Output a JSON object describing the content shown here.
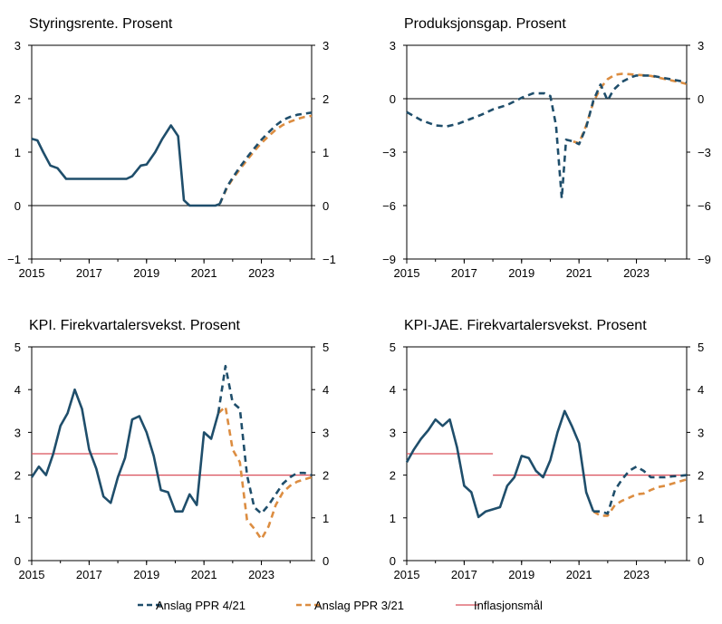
{
  "colors": {
    "ppr421": "#1f4e6b",
    "ppr321": "#dc8d41",
    "target": "#d9505b",
    "axis": "#000000"
  },
  "legend": [
    {
      "label": "Anslag PPR 4/21",
      "style": "dash-navy"
    },
    {
      "label": "Anslag PPR 3/21",
      "style": "dash-orange"
    },
    {
      "label": "Inflasjonsmål",
      "style": "solid-red"
    }
  ],
  "chart_data": [
    {
      "type": "line",
      "title": "Styringsrente. Prosent",
      "xlim": [
        2015,
        2024.75
      ],
      "ylim": [
        -1,
        3
      ],
      "yticks": [
        "-1",
        "0",
        "1",
        "2",
        "3"
      ],
      "yticks_right": [
        "-1",
        "0",
        "1",
        "2",
        "3"
      ],
      "ytick_values": [
        -1,
        0,
        1,
        2,
        3
      ],
      "xticks": [
        "2015",
        "2017",
        "2019",
        "2021",
        "2023"
      ],
      "series": [
        {
          "role": "history",
          "points": [
            [
              2015.0,
              1.25
            ],
            [
              2015.2,
              1.22
            ],
            [
              2015.4,
              1.0
            ],
            [
              2015.65,
              0.75
            ],
            [
              2015.9,
              0.7
            ],
            [
              2016.2,
              0.5
            ],
            [
              2016.5,
              0.5
            ],
            [
              2016.8,
              0.5
            ],
            [
              2017.2,
              0.5
            ],
            [
              2017.6,
              0.5
            ],
            [
              2018.0,
              0.5
            ],
            [
              2018.3,
              0.5
            ],
            [
              2018.5,
              0.55
            ],
            [
              2018.8,
              0.75
            ],
            [
              2019.0,
              0.77
            ],
            [
              2019.3,
              1.0
            ],
            [
              2019.55,
              1.25
            ],
            [
              2019.85,
              1.5
            ],
            [
              2020.1,
              1.3
            ],
            [
              2020.3,
              0.1
            ],
            [
              2020.5,
              0.0
            ],
            [
              2020.8,
              0.0
            ],
            [
              2021.1,
              0.0
            ],
            [
              2021.4,
              0.0
            ],
            [
              2021.55,
              0.03
            ]
          ]
        },
        {
          "role": "ppr421",
          "points": [
            [
              2021.55,
              0.03
            ],
            [
              2021.8,
              0.35
            ],
            [
              2022.0,
              0.52
            ],
            [
              2022.25,
              0.72
            ],
            [
              2022.5,
              0.9
            ],
            [
              2022.75,
              1.07
            ],
            [
              2023.0,
              1.23
            ],
            [
              2023.25,
              1.37
            ],
            [
              2023.5,
              1.5
            ],
            [
              2023.75,
              1.6
            ],
            [
              2024.0,
              1.66
            ],
            [
              2024.25,
              1.7
            ],
            [
              2024.5,
              1.72
            ],
            [
              2024.75,
              1.74
            ]
          ]
        },
        {
          "role": "ppr321",
          "points": [
            [
              2021.55,
              0.03
            ],
            [
              2021.8,
              0.33
            ],
            [
              2022.0,
              0.5
            ],
            [
              2022.25,
              0.68
            ],
            [
              2022.5,
              0.85
            ],
            [
              2022.75,
              1.02
            ],
            [
              2023.0,
              1.17
            ],
            [
              2023.25,
              1.3
            ],
            [
              2023.5,
              1.42
            ],
            [
              2023.75,
              1.51
            ],
            [
              2024.0,
              1.57
            ],
            [
              2024.25,
              1.62
            ],
            [
              2024.5,
              1.66
            ],
            [
              2024.75,
              1.68
            ]
          ]
        }
      ]
    },
    {
      "type": "line",
      "title": "Produksjonsgap. Prosent",
      "xlim": [
        2015,
        2024.75
      ],
      "ylim": [
        -9,
        3
      ],
      "yticks": [
        "-9",
        "-6",
        "-3",
        "0",
        "3"
      ],
      "yticks_right": [
        "-9",
        "-6",
        "-3",
        "0",
        "3"
      ],
      "ytick_values": [
        -9,
        -6,
        -3,
        0,
        3
      ],
      "xticks": [
        "2015",
        "2017",
        "2019",
        "2021",
        "2023"
      ],
      "series": [
        {
          "role": "ppr421",
          "points": [
            [
              2015.0,
              -0.75
            ],
            [
              2015.5,
              -1.2
            ],
            [
              2016.0,
              -1.5
            ],
            [
              2016.4,
              -1.55
            ],
            [
              2016.8,
              -1.4
            ],
            [
              2017.2,
              -1.15
            ],
            [
              2017.6,
              -0.9
            ],
            [
              2018.0,
              -0.6
            ],
            [
              2018.5,
              -0.35
            ],
            [
              2019.0,
              0.05
            ],
            [
              2019.4,
              0.3
            ],
            [
              2019.8,
              0.3
            ],
            [
              2020.0,
              0.15
            ],
            [
              2020.2,
              -1.5
            ],
            [
              2020.4,
              -5.6
            ],
            [
              2020.55,
              -2.3
            ],
            [
              2020.8,
              -2.4
            ],
            [
              2021.0,
              -2.55
            ],
            [
              2021.25,
              -1.6
            ],
            [
              2021.5,
              -0.1
            ],
            [
              2021.75,
              0.8
            ],
            [
              2022.0,
              -0.1
            ],
            [
              2022.2,
              0.5
            ],
            [
              2022.5,
              0.95
            ],
            [
              2022.8,
              1.2
            ],
            [
              2023.0,
              1.3
            ],
            [
              2023.5,
              1.3
            ],
            [
              2024.0,
              1.15
            ],
            [
              2024.5,
              1.0
            ],
            [
              2024.75,
              0.9
            ]
          ]
        },
        {
          "role": "ppr321",
          "points": [
            [
              2020.8,
              -2.4
            ],
            [
              2021.0,
              -2.5
            ],
            [
              2021.25,
              -1.5
            ],
            [
              2021.5,
              -0.2
            ],
            [
              2021.75,
              0.6
            ],
            [
              2022.0,
              1.1
            ],
            [
              2022.25,
              1.35
            ],
            [
              2022.5,
              1.4
            ],
            [
              2022.75,
              1.38
            ],
            [
              2023.0,
              1.35
            ],
            [
              2023.5,
              1.28
            ],
            [
              2024.0,
              1.1
            ],
            [
              2024.5,
              0.93
            ],
            [
              2024.75,
              0.83
            ]
          ]
        }
      ]
    },
    {
      "type": "line",
      "title": "KPI. Firekvartalersvekst. Prosent",
      "xlim": [
        2015,
        2024.75
      ],
      "ylim": [
        0,
        5
      ],
      "yticks": [
        "0",
        "1",
        "2",
        "3",
        "4",
        "5"
      ],
      "yticks_right": [
        "0",
        "1",
        "2",
        "3",
        "4",
        "5"
      ],
      "ytick_values": [
        0,
        1,
        2,
        3,
        4,
        5
      ],
      "xticks": [
        "2015",
        "2017",
        "2019",
        "2021",
        "2023"
      ],
      "series": [
        {
          "role": "history",
          "points": [
            [
              2015.0,
              1.95
            ],
            [
              2015.25,
              2.2
            ],
            [
              2015.5,
              2.0
            ],
            [
              2015.75,
              2.5
            ],
            [
              2016.0,
              3.15
            ],
            [
              2016.25,
              3.45
            ],
            [
              2016.5,
              4.0
            ],
            [
              2016.75,
              3.55
            ],
            [
              2017.0,
              2.6
            ],
            [
              2017.25,
              2.15
            ],
            [
              2017.5,
              1.5
            ],
            [
              2017.75,
              1.35
            ],
            [
              2018.0,
              1.95
            ],
            [
              2018.25,
              2.4
            ],
            [
              2018.5,
              3.3
            ],
            [
              2018.75,
              3.38
            ],
            [
              2019.0,
              3.0
            ],
            [
              2019.25,
              2.45
            ],
            [
              2019.5,
              1.65
            ],
            [
              2019.75,
              1.6
            ],
            [
              2020.0,
              1.15
            ],
            [
              2020.25,
              1.15
            ],
            [
              2020.5,
              1.55
            ],
            [
              2020.75,
              1.3
            ],
            [
              2021.0,
              3.0
            ],
            [
              2021.25,
              2.85
            ],
            [
              2021.5,
              3.45
            ]
          ]
        },
        {
          "role": "ppr421",
          "points": [
            [
              2021.5,
              3.45
            ],
            [
              2021.75,
              4.55
            ],
            [
              2022.0,
              3.7
            ],
            [
              2022.25,
              3.55
            ],
            [
              2022.5,
              2.0
            ],
            [
              2022.75,
              1.25
            ],
            [
              2023.0,
              1.1
            ],
            [
              2023.25,
              1.3
            ],
            [
              2023.5,
              1.55
            ],
            [
              2023.75,
              1.8
            ],
            [
              2024.0,
              1.95
            ],
            [
              2024.25,
              2.05
            ],
            [
              2024.5,
              2.05
            ],
            [
              2024.75,
              2.0
            ]
          ]
        },
        {
          "role": "ppr321",
          "points": [
            [
              2021.5,
              3.45
            ],
            [
              2021.75,
              3.6
            ],
            [
              2022.0,
              2.6
            ],
            [
              2022.25,
              2.3
            ],
            [
              2022.5,
              0.95
            ],
            [
              2022.75,
              0.75
            ],
            [
              2023.0,
              0.5
            ],
            [
              2023.25,
              0.8
            ],
            [
              2023.5,
              1.3
            ],
            [
              2023.75,
              1.6
            ],
            [
              2024.0,
              1.75
            ],
            [
              2024.25,
              1.85
            ],
            [
              2024.5,
              1.9
            ],
            [
              2024.75,
              1.95
            ]
          ]
        },
        {
          "role": "target",
          "points": [
            [
              2015.0,
              2.5
            ],
            [
              2018.0,
              2.5
            ]
          ]
        },
        {
          "role": "target",
          "points": [
            [
              2018.0,
              2.0
            ],
            [
              2024.75,
              2.0
            ]
          ]
        }
      ]
    },
    {
      "type": "line",
      "title": "KPI-JAE. Firekvartalersvekst. Prosent",
      "xlim": [
        2015,
        2024.75
      ],
      "ylim": [
        0,
        5
      ],
      "yticks": [
        "0",
        "1",
        "2",
        "3",
        "4",
        "5"
      ],
      "yticks_right": [
        "0",
        "1",
        "2",
        "3",
        "4",
        "5"
      ],
      "ytick_values": [
        0,
        1,
        2,
        3,
        4,
        5
      ],
      "xticks": [
        "2015",
        "2017",
        "2019",
        "2021",
        "2023"
      ],
      "series": [
        {
          "role": "history",
          "points": [
            [
              2015.0,
              2.3
            ],
            [
              2015.25,
              2.6
            ],
            [
              2015.5,
              2.85
            ],
            [
              2015.75,
              3.05
            ],
            [
              2016.0,
              3.3
            ],
            [
              2016.25,
              3.15
            ],
            [
              2016.5,
              3.3
            ],
            [
              2016.75,
              2.65
            ],
            [
              2017.0,
              1.75
            ],
            [
              2017.25,
              1.6
            ],
            [
              2017.5,
              1.02
            ],
            [
              2017.75,
              1.15
            ],
            [
              2018.0,
              1.2
            ],
            [
              2018.25,
              1.25
            ],
            [
              2018.5,
              1.75
            ],
            [
              2018.75,
              1.95
            ],
            [
              2019.0,
              2.45
            ],
            [
              2019.25,
              2.4
            ],
            [
              2019.5,
              2.1
            ],
            [
              2019.75,
              1.95
            ],
            [
              2020.0,
              2.35
            ],
            [
              2020.25,
              3.0
            ],
            [
              2020.5,
              3.5
            ],
            [
              2020.75,
              3.15
            ],
            [
              2021.0,
              2.75
            ],
            [
              2021.25,
              1.6
            ],
            [
              2021.5,
              1.15
            ]
          ]
        },
        {
          "role": "ppr421",
          "points": [
            [
              2021.5,
              1.15
            ],
            [
              2021.75,
              1.15
            ],
            [
              2022.0,
              1.1
            ],
            [
              2022.25,
              1.65
            ],
            [
              2022.5,
              1.9
            ],
            [
              2022.75,
              2.1
            ],
            [
              2023.0,
              2.2
            ],
            [
              2023.25,
              2.1
            ],
            [
              2023.5,
              1.95
            ],
            [
              2023.75,
              1.95
            ],
            [
              2024.0,
              1.95
            ],
            [
              2024.25,
              1.97
            ],
            [
              2024.5,
              1.98
            ],
            [
              2024.75,
              2.0
            ]
          ]
        },
        {
          "role": "ppr321",
          "points": [
            [
              2021.5,
              1.15
            ],
            [
              2021.75,
              1.05
            ],
            [
              2022.0,
              1.05
            ],
            [
              2022.25,
              1.3
            ],
            [
              2022.5,
              1.4
            ],
            [
              2022.75,
              1.47
            ],
            [
              2023.0,
              1.55
            ],
            [
              2023.25,
              1.57
            ],
            [
              2023.5,
              1.65
            ],
            [
              2023.75,
              1.72
            ],
            [
              2024.0,
              1.75
            ],
            [
              2024.25,
              1.8
            ],
            [
              2024.5,
              1.85
            ],
            [
              2024.75,
              1.9
            ]
          ]
        },
        {
          "role": "target",
          "points": [
            [
              2015.0,
              2.5
            ],
            [
              2018.0,
              2.5
            ]
          ]
        },
        {
          "role": "target",
          "points": [
            [
              2018.0,
              2.0
            ],
            [
              2024.75,
              2.0
            ]
          ]
        }
      ]
    }
  ]
}
